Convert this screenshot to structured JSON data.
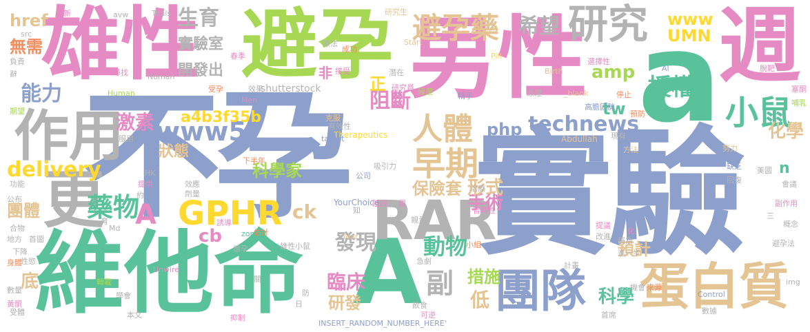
{
  "palette": {
    "green": "#59c29a",
    "orange": "#f08e5f",
    "blue": "#8da0cb",
    "pink": "#e68ac3",
    "lime": "#a6d854",
    "yellow": "#ffd92f",
    "tan": "#e5c494",
    "gray": "#b3b3b3"
  },
  "words": [
    {
      "id": "w1",
      "text": "不孕"
    },
    {
      "id": "w2",
      "text": "實驗"
    },
    {
      "id": "w3",
      "text": "男性"
    },
    {
      "id": "w4",
      "text": "a"
    },
    {
      "id": "w5",
      "text": "避孕"
    },
    {
      "id": "w6",
      "text": "雄性"
    },
    {
      "id": "w7",
      "text": "維他命"
    },
    {
      "id": "w8",
      "text": "A"
    },
    {
      "id": "w9",
      "text": "週"
    },
    {
      "id": "w10",
      "text": "作用"
    },
    {
      "id": "w11",
      "text": "更"
    },
    {
      "id": "w12",
      "text": "RAR"
    },
    {
      "id": "w13",
      "text": "GPHR"
    },
    {
      "id": "w14",
      "text": "團隊"
    },
    {
      "id": "w15",
      "text": "蛋白質"
    },
    {
      "id": "w16",
      "text": "研究"
    },
    {
      "id": "w17",
      "text": "避孕藥"
    },
    {
      "id": "w18",
      "text": "希望"
    },
    {
      "id": "w19",
      "text": "生育"
    },
    {
      "id": "w20",
      "text": "小鼠"
    },
    {
      "id": "w21",
      "text": "授權"
    },
    {
      "id": "w22",
      "text": "人體"
    },
    {
      "id": "w23",
      "text": "早期"
    },
    {
      "id": "w24",
      "text": "www5"
    },
    {
      "id": "w25",
      "text": "technews"
    },
    {
      "id": "w26",
      "text": "php"
    },
    {
      "id": "w27",
      "text": "a4b3f35b"
    },
    {
      "id": "w28",
      "text": "能力"
    },
    {
      "id": "w29",
      "text": "激素"
    },
    {
      "id": "w30",
      "text": "delivery"
    },
    {
      "id": "w31",
      "text": "藥物"
    },
    {
      "id": "w32",
      "text": "A"
    },
    {
      "id": "w33",
      "text": "cb"
    },
    {
      "id": "w34",
      "text": "發現"
    },
    {
      "id": "w35",
      "text": "動物"
    },
    {
      "id": "w36",
      "text": "臨床"
    },
    {
      "id": "w37",
      "text": "副"
    },
    {
      "id": "w38",
      "text": "措施"
    },
    {
      "id": "w39",
      "text": "研發"
    },
    {
      "id": "w40",
      "text": "低"
    },
    {
      "id": "w41",
      "text": "科學"
    },
    {
      "id": "w42",
      "text": "預計"
    },
    {
      "id": "w43",
      "text": "手術"
    },
    {
      "id": "w44",
      "text": "形式"
    },
    {
      "id": "w45",
      "text": "保險套"
    },
    {
      "id": "w46",
      "text": "科學家"
    },
    {
      "id": "w47",
      "text": "狀態"
    },
    {
      "id": "w48",
      "text": "化學"
    },
    {
      "id": "w49",
      "text": "tw"
    },
    {
      "id": "w50",
      "text": "amp"
    },
    {
      "id": "w51",
      "text": "www"
    },
    {
      "id": "w52",
      "text": "UMN"
    },
    {
      "id": "w53",
      "text": "實驗室"
    },
    {
      "id": "w54",
      "text": "開發出"
    },
    {
      "id": "w55",
      "text": "阻斷"
    },
    {
      "id": "w56",
      "text": "正"
    },
    {
      "id": "w57",
      "text": "非"
    },
    {
      "id": "w58",
      "text": "無需"
    },
    {
      "id": "w59",
      "text": "href"
    },
    {
      "id": "w60",
      "text": "團體"
    },
    {
      "id": "w61",
      "text": "ck"
    },
    {
      "id": "w62",
      "text": "底"
    },
    {
      "id": "w63",
      "text": "n"
    },
    {
      "id": "w64",
      "text": "shutterstock"
    },
    {
      "id": "w65",
      "text": "Therapeutics"
    },
    {
      "id": "w66",
      "text": "Abdullah"
    },
    {
      "id": "w67",
      "text": "YourChoice"
    },
    {
      "id": "w68",
      "text": "INSERT_RANDOM_NUMBER_HERE'"
    },
    {
      "id": "w69",
      "text": "Control"
    },
    {
      "id": "w70",
      "text": "Unwire"
    },
    {
      "id": "w71",
      "text": "Human"
    },
    {
      "id": "w72",
      "text": "Noman"
    },
    {
      "id": "w73",
      "text": "Birth"
    },
    {
      "id": "w74",
      "text": "Pill"
    },
    {
      "id": "w75",
      "text": "Start"
    },
    {
      "id": "w76",
      "text": "Trials"
    },
    {
      "id": "w77",
      "text": "avw"
    },
    {
      "id": "w78",
      "text": "src"
    },
    {
      "id": "w79",
      "text": "target"
    },
    {
      "id": "w80",
      "text": "zoneid"
    },
    {
      "id": "w81",
      "text": "Year"
    },
    {
      "id": "w82",
      "text": "Men"
    },
    {
      "id": "w83",
      "text": "img"
    },
    {
      "id": "w84",
      "text": "AI"
    },
    {
      "id": "w85",
      "text": "_blank"
    },
    {
      "id": "w86",
      "text": "Md"
    },
    {
      "id": "w87",
      "text": "HK"
    },
    {
      "id": "w88",
      "text": "研究生"
    },
    {
      "id": "w89",
      "text": "療法"
    },
    {
      "id": "w90",
      "text": "成功"
    },
    {
      "id": "w91",
      "text": "潛在"
    },
    {
      "id": "w92",
      "text": "接受"
    },
    {
      "id": "w93",
      "text": "研究員"
    },
    {
      "id": "w94",
      "text": "候選"
    },
    {
      "id": "w95",
      "text": "精子"
    },
    {
      "id": "w96",
      "text": "原理"
    },
    {
      "id": "w97",
      "text": "選擇性"
    },
    {
      "id": "w98",
      "text": "脫靶"
    },
    {
      "id": "w99",
      "text": "高膽固醇"
    },
    {
      "id": "w100",
      "text": "停止"
    },
    {
      "id": "w101",
      "text": "塞酮"
    },
    {
      "id": "w102",
      "text": "哺乳"
    },
    {
      "id": "w103",
      "text": "預防"
    },
    {
      "id": "w104",
      "text": "現有"
    },
    {
      "id": "w105",
      "text": "方法"
    },
    {
      "id": "w106",
      "text": "努力"
    },
    {
      "id": "w107",
      "text": "美國"
    },
    {
      "id": "w108",
      "text": "缺乏"
    },
    {
      "id": "w109",
      "text": "回復"
    },
    {
      "id": "w110",
      "text": "會議"
    },
    {
      "id": "w111",
      "text": "副作用"
    },
    {
      "id": "w112",
      "text": "三"
    },
    {
      "id": "w113",
      "text": "概念"
    },
    {
      "id": "w114",
      "text": "避孕法"
    },
    {
      "id": "w115",
      "text": "稱為"
    },
    {
      "id": "w116",
      "text": "進一步"
    },
    {
      "id": "w117",
      "text": "提議"
    },
    {
      "id": "w118",
      "text": "改進"
    },
    {
      "id": "w119",
      "text": "化"
    },
    {
      "id": "w120",
      "text": "計畫"
    },
    {
      "id": "w121",
      "text": "機會"
    },
    {
      "id": "w122",
      "text": "來源"
    },
    {
      "id": "w123",
      "text": "首席"
    },
    {
      "id": "w124",
      "text": "數據"
    },
    {
      "id": "w125",
      "text": "小組"
    },
    {
      "id": "w126",
      "text": "急劇"
    },
    {
      "id": "w127",
      "text": "治療"
    },
    {
      "id": "w128",
      "text": "暫時性"
    },
    {
      "id": "w129",
      "text": "效果"
    },
    {
      "id": "w130",
      "text": "受孕"
    },
    {
      "id": "w131",
      "text": "克服"
    },
    {
      "id": "w132",
      "text": "有效性"
    },
    {
      "id": "w133",
      "text": "吸引力"
    },
    {
      "id": "w134",
      "text": "公司"
    },
    {
      "id": "w135",
      "text": "殖器"
    },
    {
      "id": "w136",
      "text": "下半年"
    },
    {
      "id": "w137",
      "text": "效應"
    },
    {
      "id": "w138",
      "text": "劑量"
    },
    {
      "id": "w139",
      "text": "誘導"
    },
    {
      "id": "w140",
      "text": "估計"
    },
    {
      "id": "w141",
      "text": "懷孕"
    },
    {
      "id": "w142",
      "text": "雄性小鼠"
    },
    {
      "id": "w143",
      "text": "抑制"
    },
    {
      "id": "w144",
      "text": "本文"
    },
    {
      "id": "w145",
      "text": "學會"
    },
    {
      "id": "w146",
      "text": "轉載"
    },
    {
      "id": "w147",
      "text": "性慾"
    },
    {
      "id": "w148",
      "text": "受體"
    },
    {
      "id": "w149",
      "text": "黃酮"
    },
    {
      "id": "w150",
      "text": "數量"
    },
    {
      "id": "w151",
      "text": "身體"
    },
    {
      "id": "w152",
      "text": "下降"
    },
    {
      "id": "w153",
      "text": "地方"
    },
    {
      "id": "w154",
      "text": "首圖"
    },
    {
      "id": "w155",
      "text": "合物"
    },
    {
      "id": "w156",
      "text": "公布"
    },
    {
      "id": "w157",
      "text": "功能"
    },
    {
      "id": "w158",
      "text": "提供"
    },
    {
      "id": "w159",
      "text": "期望"
    },
    {
      "id": "w160",
      "text": "服用"
    },
    {
      "id": "w161",
      "text": "尋找"
    },
    {
      "id": "w162",
      "text": "負責"
    },
    {
      "id": "w163",
      "text": "辭"
    },
    {
      "id": "w164",
      "text": "新"
    },
    {
      "id": "w165",
      "text": "春季"
    },
    {
      "id": "w166",
      "text": "知"
    },
    {
      "id": "w167",
      "text": "觀"
    },
    {
      "id": "w168",
      "text": "約"
    },
    {
      "id": "w169",
      "text": "育"
    },
    {
      "id": "w170",
      "text": "防"
    },
    {
      "id": "w171",
      "text": "日"
    },
    {
      "id": "w172",
      "text": "飲食"
    },
    {
      "id": "w173",
      "text": "可逆"
    },
    {
      "id": "w174",
      "text": "關"
    },
    {
      "id": "w175",
      "text": "親黃"
    }
  ]
}
